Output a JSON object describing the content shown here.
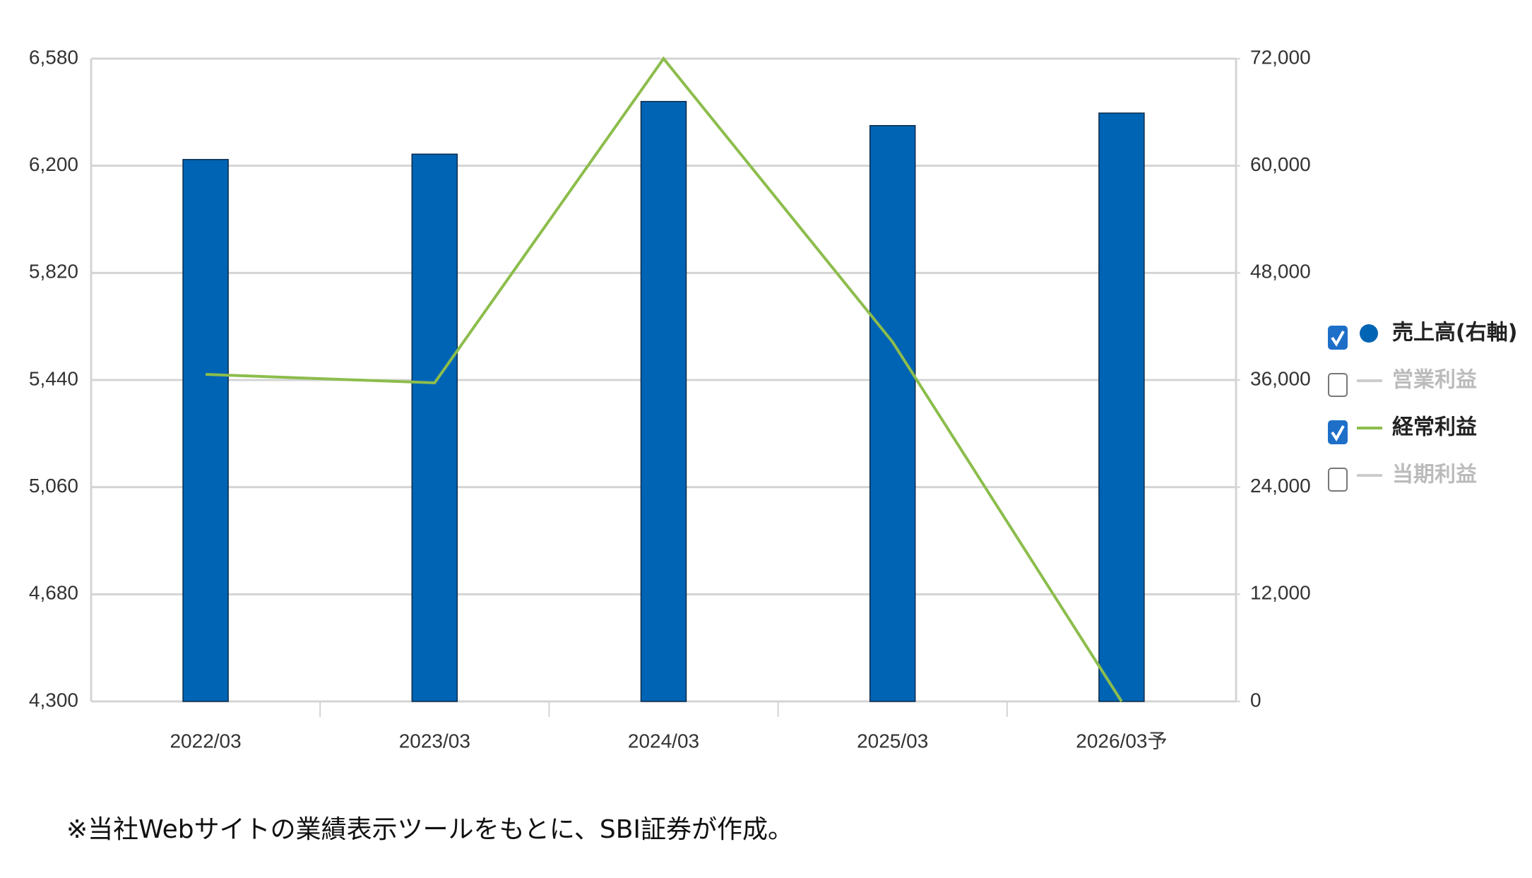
{
  "chart_data": {
    "type": "bar_line",
    "categories": [
      "2022/03",
      "2023/03",
      "2024/03",
      "2025/03",
      "2026/03予"
    ],
    "series": [
      {
        "name": "売上高(右軸)",
        "type": "bar",
        "color": "#0064b4",
        "axis": "y2",
        "visible": true,
        "values": [
          60700,
          61300,
          67200,
          64500,
          65900
        ]
      },
      {
        "name": "営業利益",
        "type": "line",
        "color": "#bbbbbb",
        "axis": "y",
        "visible": false,
        "values": [
          null,
          null,
          null,
          null,
          null
        ]
      },
      {
        "name": "経常利益",
        "type": "line",
        "color": "#8cbd4c",
        "axis": "y",
        "visible": true,
        "values": [
          5460,
          5430,
          6580,
          5575,
          4300
        ]
      },
      {
        "name": "当期利益",
        "type": "line",
        "color": "#bbbbbb",
        "axis": "y",
        "visible": false,
        "values": [
          null,
          null,
          null,
          null,
          null
        ]
      }
    ],
    "ylim": [
      4300,
      6580
    ],
    "yticks": [
      {
        "value": 4300,
        "label": "4,300"
      },
      {
        "value": 4680,
        "label": "4,680"
      },
      {
        "value": 5060,
        "label": "5,060"
      },
      {
        "value": 5440,
        "label": "5,440"
      },
      {
        "value": 5820,
        "label": "5,820"
      },
      {
        "value": 6200,
        "label": "6,200"
      },
      {
        "value": 6580,
        "label": "6,580"
      }
    ],
    "y2lim": [
      0,
      72000
    ],
    "y2ticks": [
      0,
      {
        "value": 12000,
        "label": "12,000"
      },
      {
        "value": 24000,
        "label": "24,000"
      },
      {
        "value": 36000,
        "label": "36,000"
      },
      {
        "value": 48000,
        "label": "48,000"
      },
      {
        "value": 60000,
        "label": "60,000"
      },
      {
        "value": 72000,
        "label": "72,000"
      }
    ],
    "grid": true,
    "legend": "right",
    "note": "※当社Webサイトの業績表示ツールをもとに、SBI証券が作成。"
  }
}
